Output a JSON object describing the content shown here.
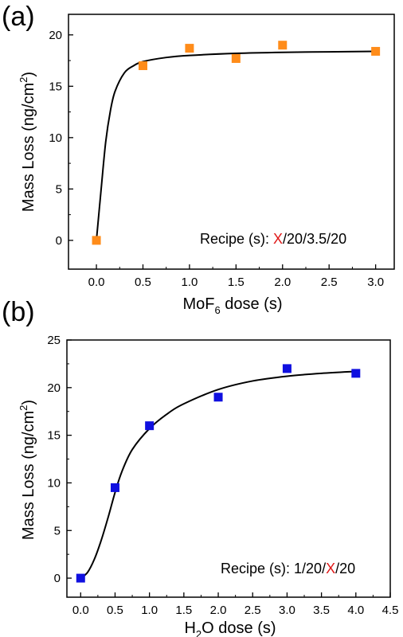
{
  "chart_data": [
    {
      "type": "scatter",
      "panel_label": "(a)",
      "xlabel": {
        "pre": "MoF",
        "sub": "6",
        "post": " dose (s)"
      },
      "ylabel": {
        "pre": "Mass Loss (ng/cm",
        "sup": "2",
        "post": ")"
      },
      "xlim": [
        -0.3,
        3.2
      ],
      "ylim": [
        -2.8,
        22
      ],
      "xticks": [
        0.0,
        0.5,
        1.0,
        1.5,
        2.0,
        2.5,
        3.0
      ],
      "xtick_labels": [
        "0.0",
        "0.5",
        "1.0",
        "1.5",
        "2.0",
        "2.5",
        "3.0"
      ],
      "yticks": [
        0,
        5,
        10,
        15,
        20
      ],
      "ytick_labels": [
        "0",
        "5",
        "10",
        "15",
        "20"
      ],
      "series": [
        {
          "marker": "square",
          "color": "#ff8c1a",
          "x": [
            0.0,
            0.5,
            1.0,
            1.5,
            2.0,
            3.0
          ],
          "y": [
            0.0,
            17.0,
            18.7,
            17.7,
            19.0,
            18.4
          ]
        }
      ],
      "fit": [
        [
          0.0,
          0.0
        ],
        [
          0.05,
          4.9
        ],
        [
          0.1,
          9.6
        ],
        [
          0.15,
          12.6
        ],
        [
          0.2,
          14.5
        ],
        [
          0.3,
          16.3
        ],
        [
          0.4,
          17.0
        ],
        [
          0.5,
          17.4
        ],
        [
          0.75,
          17.8
        ],
        [
          1.0,
          18.0
        ],
        [
          1.5,
          18.2
        ],
        [
          2.0,
          18.3
        ],
        [
          2.5,
          18.35
        ],
        [
          3.0,
          18.4
        ]
      ],
      "recipe": {
        "label": "Recipe (s): ",
        "highlight": "X",
        "rest": "/20/3.5/20"
      }
    },
    {
      "type": "scatter",
      "panel_label": "(b)",
      "xlabel": {
        "pre": "H",
        "sub": "2",
        "post": "O dose (s)"
      },
      "ylabel": {
        "pre": "Mass Loss (ng/cm",
        "sup": "2",
        "post": ")"
      },
      "xlim": [
        -0.2,
        4.5
      ],
      "ylim": [
        -2.0,
        25
      ],
      "xticks": [
        0.0,
        0.5,
        1.0,
        1.5,
        2.0,
        2.5,
        3.0,
        3.5,
        4.0,
        4.5
      ],
      "xtick_labels": [
        "0.0",
        "0.5",
        "1.0",
        "1.5",
        "2.0",
        "2.5",
        "3.0",
        "3.5",
        "4.0",
        "4.5"
      ],
      "yticks": [
        0,
        5,
        10,
        15,
        20,
        25
      ],
      "ytick_labels": [
        "0",
        "5",
        "10",
        "15",
        "20",
        "25"
      ],
      "series": [
        {
          "marker": "square",
          "color": "#1010e0",
          "x": [
            0.0,
            0.5,
            1.0,
            2.0,
            3.0,
            4.0
          ],
          "y": [
            0.0,
            9.5,
            16.0,
            19.0,
            22.0,
            21.5
          ]
        }
      ],
      "fit": [
        [
          0.0,
          0.0
        ],
        [
          0.1,
          0.6
        ],
        [
          0.2,
          2.0
        ],
        [
          0.3,
          4.0
        ],
        [
          0.4,
          6.4
        ],
        [
          0.5,
          9.0
        ],
        [
          0.6,
          11.2
        ],
        [
          0.75,
          13.5
        ],
        [
          1.0,
          15.7
        ],
        [
          1.25,
          17.2
        ],
        [
          1.5,
          18.3
        ],
        [
          2.0,
          19.8
        ],
        [
          2.5,
          20.7
        ],
        [
          3.0,
          21.2
        ],
        [
          3.5,
          21.5
        ],
        [
          4.0,
          21.7
        ]
      ],
      "recipe": {
        "label": "Recipe (s): ",
        "pre": "1/20/",
        "highlight": "X",
        "rest": "/20"
      }
    }
  ]
}
